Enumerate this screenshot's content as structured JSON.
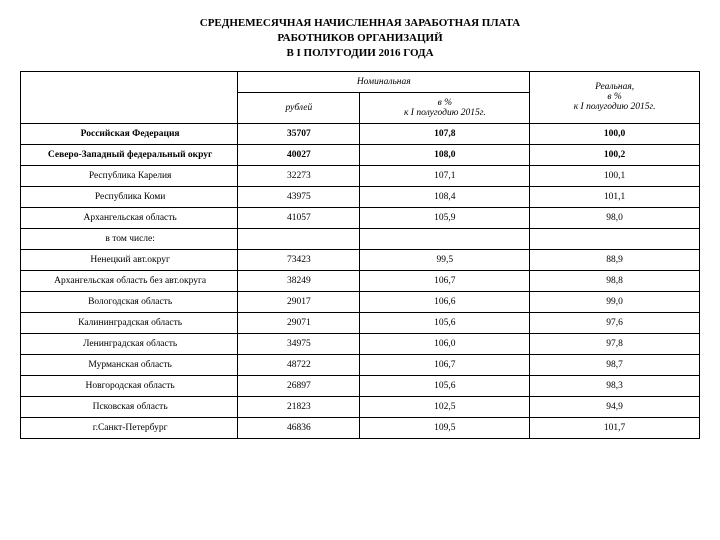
{
  "title_lines": [
    "СРЕДНЕМЕСЯЧНАЯ НАЧИСЛЕННАЯ ЗАРАБОТНАЯ ПЛАТА",
    "РАБОТНИКОВ ОРГАНИЗАЦИЙ",
    "В I ПОЛУГОДИИ 2016 ГОДА"
  ],
  "header": {
    "nominal": "Номинальная",
    "rub": "рублей",
    "pct_nominal_l1": "в %",
    "pct_nominal_l2": "к I полугодию 2015г.",
    "real_l1": "Реальная,",
    "real_l2": "в %",
    "real_l3": "к I полугодию 2015г."
  },
  "rows": [
    {
      "region": "Российская Федерация",
      "rub": "35707",
      "nom": "107,8",
      "real": "100,0",
      "bold": true
    },
    {
      "region": "Северо-Западный федеральный округ",
      "rub": "40027",
      "nom": "108,0",
      "real": "100,2",
      "bold": true
    },
    {
      "region": "Республика Карелия",
      "rub": "32273",
      "nom": "107,1",
      "real": "100,1",
      "bold": false
    },
    {
      "region": "Республика Коми",
      "rub": "43975",
      "nom": "108,4",
      "real": "101,1",
      "bold": false
    },
    {
      "region": "Архангельская область",
      "rub": "41057",
      "nom": "105,9",
      "real": "98,0",
      "bold": false
    },
    {
      "region": "в том числе:",
      "rub": "",
      "nom": "",
      "real": "",
      "bold": false,
      "sub": true
    },
    {
      "region": "Ненецкий авт.округ",
      "rub": "73423",
      "nom": "99,5",
      "real": "88,9",
      "bold": false
    },
    {
      "region": "Архангельская область без авт.округа",
      "rub": "38249",
      "nom": "106,7",
      "real": "98,8",
      "bold": false
    },
    {
      "region": "Вологодская область",
      "rub": "29017",
      "nom": "106,6",
      "real": "99,0",
      "bold": false
    },
    {
      "region": "Калининградская область",
      "rub": "29071",
      "nom": "105,6",
      "real": "97,6",
      "bold": false
    },
    {
      "region": "Ленинградская область",
      "rub": "34975",
      "nom": "106,0",
      "real": "97,8",
      "bold": false
    },
    {
      "region": "Мурманская область",
      "rub": "48722",
      "nom": "106,7",
      "real": "98,7",
      "bold": false
    },
    {
      "region": "Новгородская область",
      "rub": "26897",
      "nom": "105,6",
      "real": "98,3",
      "bold": false
    },
    {
      "region": "Псковская область",
      "rub": "21823",
      "nom": "102,5",
      "real": "94,9",
      "bold": false
    },
    {
      "region": "г.Санкт-Петербург",
      "rub": "46836",
      "nom": "109,5",
      "real": "101,7",
      "bold": false
    }
  ],
  "style": {
    "background": "#ffffff",
    "text_color": "#000000",
    "border_color": "#000000",
    "title_fontsize": 11,
    "table_fontsize": 9.5
  }
}
